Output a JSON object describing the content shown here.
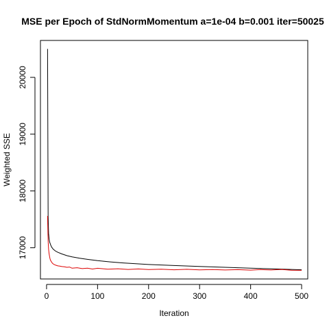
{
  "chart_data": {
    "type": "line",
    "title": "MSE per Epoch of StdNormMomentum a=1e-04 b=0.001 iter=50025",
    "xlabel": "Iteration",
    "ylabel": "Weighted SSE",
    "xlim": [
      -12,
      512
    ],
    "ylim": [
      16450,
      20650
    ],
    "x_ticks": [
      0,
      100,
      200,
      300,
      400,
      500
    ],
    "y_ticks": [
      17000,
      18000,
      19000,
      20000
    ],
    "x_tick_labels": [
      "0",
      "100",
      "200",
      "300",
      "400",
      "500"
    ],
    "y_tick_labels": [
      "17000",
      "18000",
      "19000",
      "20000"
    ],
    "grid": false,
    "legend": "none",
    "series": [
      {
        "color": "#000000",
        "x": [
          2,
          3,
          4,
          5,
          6,
          8,
          10,
          13,
          17,
          22,
          30,
          40,
          50,
          65,
          80,
          100,
          125,
          150,
          175,
          200,
          250,
          300,
          350,
          400,
          450,
          500
        ],
        "y": [
          20500,
          17550,
          17250,
          17150,
          17100,
          17050,
          17010,
          16975,
          16945,
          16920,
          16890,
          16860,
          16840,
          16815,
          16795,
          16772,
          16750,
          16733,
          16718,
          16705,
          16686,
          16670,
          16655,
          16640,
          16626,
          16612
        ]
      },
      {
        "color": "#dd0000",
        "x": [
          2,
          3,
          4,
          5,
          6,
          7,
          8,
          10,
          12,
          15,
          18,
          22,
          26,
          30,
          35,
          40,
          45,
          50,
          60,
          70,
          80,
          90,
          100,
          120,
          140,
          160,
          180,
          200,
          225,
          250,
          275,
          300,
          325,
          350,
          375,
          400,
          420,
          440,
          460,
          480,
          500
        ],
        "y": [
          17560,
          17120,
          16970,
          16890,
          16840,
          16800,
          16775,
          16745,
          16722,
          16705,
          16692,
          16680,
          16676,
          16668,
          16665,
          16655,
          16660,
          16640,
          16648,
          16632,
          16640,
          16625,
          16638,
          16622,
          16630,
          16618,
          16626,
          16615,
          16622,
          16612,
          16620,
          16610,
          16616,
          16608,
          16614,
          16606,
          16615,
          16608,
          16618,
          16605,
          16602
        ]
      }
    ]
  }
}
